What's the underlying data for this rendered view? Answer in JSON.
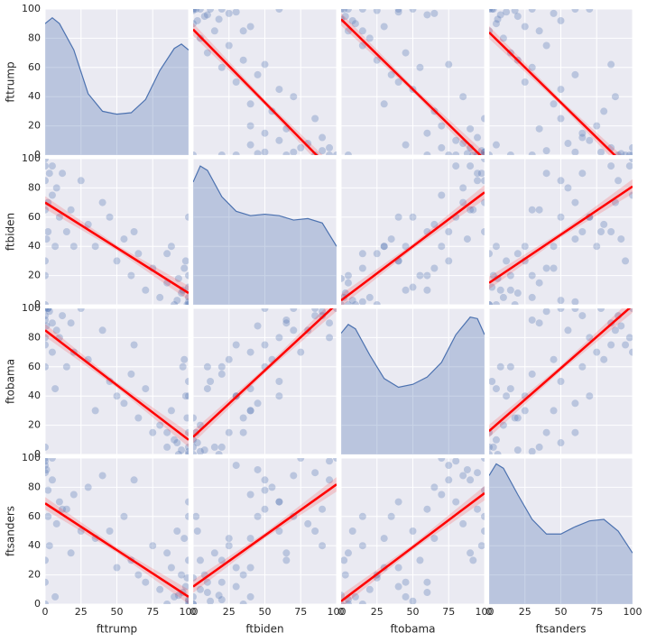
{
  "chart_data": {
    "type": "pairplot",
    "variables": [
      "fttrump",
      "ftbiden",
      "ftobama",
      "ftsanders"
    ],
    "lim": [
      0,
      100
    ],
    "xticks": [
      0,
      25,
      50,
      75,
      100
    ],
    "yticks": [
      0,
      20,
      40,
      60,
      80,
      100
    ],
    "grid": true,
    "point_color": "#4c72b0",
    "line_color": "#ff0000",
    "kde_color": "#4c72b0",
    "kde_ylim": [
      0,
      100
    ],
    "columns": [
      [
        0,
        2,
        5,
        0,
        10,
        1,
        3,
        15,
        0,
        8,
        20,
        0,
        30,
        35,
        45,
        50,
        55,
        60,
        65,
        70,
        75,
        80,
        85,
        90,
        95,
        100,
        98,
        92,
        100,
        88,
        96,
        100,
        85,
        99,
        93,
        100,
        2,
        5,
        0,
        12,
        40,
        25,
        0,
        100,
        7,
        0,
        97,
        18,
        62,
        100
      ],
      [
        85,
        70,
        95,
        100,
        60,
        45,
        90,
        50,
        30,
        80,
        40,
        65,
        55,
        40,
        60,
        30,
        45,
        20,
        35,
        10,
        25,
        5,
        15,
        0,
        8,
        0,
        30,
        3,
        20,
        40,
        10,
        5,
        35,
        0,
        18,
        12,
        50,
        75,
        20,
        90,
        70,
        85,
        0,
        60,
        40,
        95,
        25,
        65,
        50,
        2
      ],
      [
        95,
        100,
        90,
        100,
        80,
        88,
        98,
        60,
        75,
        85,
        70,
        92,
        65,
        30,
        50,
        40,
        35,
        55,
        25,
        45,
        15,
        20,
        5,
        10,
        3,
        0,
        40,
        8,
        5,
        30,
        60,
        2,
        15,
        25,
        0,
        50,
        100,
        70,
        60,
        95,
        85,
        100,
        5,
        40,
        45,
        80,
        65,
        90,
        75,
        15
      ],
      [
        90,
        60,
        85,
        100,
        70,
        92,
        40,
        65,
        95,
        55,
        75,
        30,
        80,
        45,
        50,
        25,
        60,
        30,
        20,
        15,
        40,
        10,
        35,
        5,
        20,
        0,
        12,
        50,
        3,
        25,
        8,
        30,
        0,
        18,
        6,
        2,
        78,
        100,
        15,
        65,
        88,
        50,
        0,
        70,
        5,
        98,
        45,
        35,
        85,
        60
      ]
    ],
    "kde": [
      {
        "x": [
          0,
          5,
          10,
          20,
          30,
          40,
          50,
          60,
          70,
          80,
          90,
          95,
          100
        ],
        "y": [
          90,
          94,
          90,
          72,
          42,
          30,
          28,
          29,
          38,
          58,
          73,
          76,
          72
        ]
      },
      {
        "x": [
          0,
          5,
          10,
          20,
          30,
          40,
          50,
          60,
          70,
          80,
          90,
          100
        ],
        "y": [
          84,
          95,
          92,
          74,
          64,
          61,
          62,
          61,
          58,
          59,
          56,
          40
        ]
      },
      {
        "x": [
          0,
          5,
          10,
          20,
          30,
          40,
          50,
          60,
          70,
          80,
          90,
          95,
          100
        ],
        "y": [
          83,
          89,
          86,
          68,
          52,
          46,
          48,
          53,
          63,
          82,
          94,
          93,
          82
        ]
      },
      {
        "x": [
          0,
          5,
          10,
          20,
          30,
          40,
          50,
          60,
          70,
          80,
          90,
          100
        ],
        "y": [
          88,
          96,
          93,
          75,
          58,
          48,
          48,
          53,
          57,
          58,
          50,
          35
        ]
      }
    ],
    "fits": [
      [
        null,
        [
          86,
          -14
        ],
        [
          93,
          -3
        ],
        [
          84,
          -12
        ]
      ],
      [
        [
          70,
          8
        ],
        null,
        [
          3,
          77
        ],
        [
          15,
          81
        ]
      ],
      [
        [
          85,
          10
        ],
        [
          12,
          103
        ],
        null,
        [
          16,
          102
        ]
      ],
      [
        [
          69,
          5
        ],
        [
          12,
          82
        ],
        [
          2,
          76
        ],
        null
      ]
    ]
  }
}
